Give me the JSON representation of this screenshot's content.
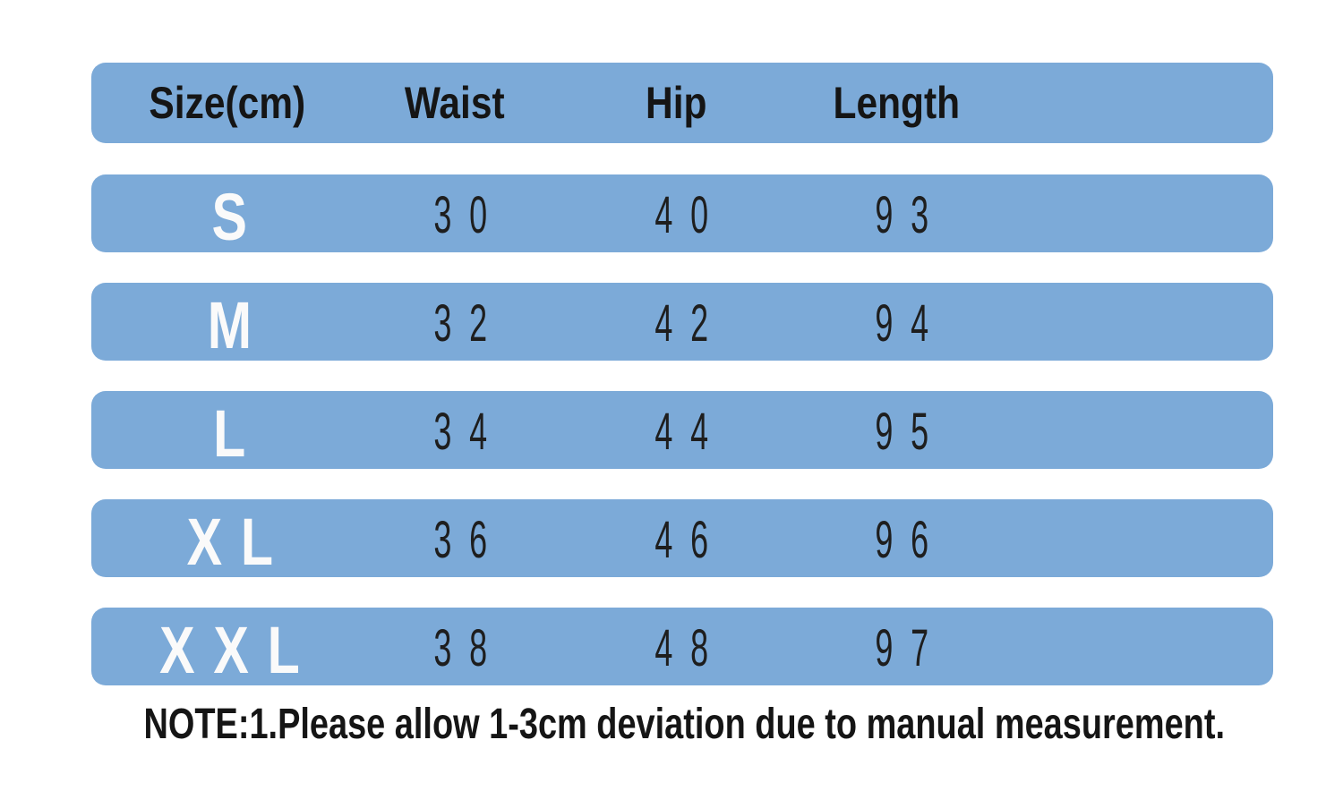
{
  "table": {
    "header": {
      "size": "Size(cm)",
      "waist": "Waist",
      "hip": "Hip",
      "length": "Length"
    },
    "rows": [
      {
        "size": "S",
        "waist": "30",
        "hip": "40",
        "length": "93"
      },
      {
        "size": "M",
        "waist": "32",
        "hip": "42",
        "length": "94"
      },
      {
        "size": "L",
        "waist": "34",
        "hip": "44",
        "length": "95"
      },
      {
        "size": "XL",
        "waist": "36",
        "hip": "46",
        "length": "96"
      },
      {
        "size": "XXL",
        "waist": "38",
        "hip": "48",
        "length": "97"
      }
    ]
  },
  "note": "NOTE:1.Please allow 1-3cm deviation due to manual measurement.",
  "chart_data": {
    "type": "table",
    "columns": [
      "Size(cm)",
      "Waist",
      "Hip",
      "Length"
    ],
    "rows": [
      [
        "S",
        30,
        40,
        93
      ],
      [
        "M",
        32,
        42,
        94
      ],
      [
        "L",
        34,
        44,
        95
      ],
      [
        "XL",
        36,
        46,
        96
      ],
      [
        "XXL",
        38,
        48,
        97
      ]
    ],
    "units": "cm",
    "note": "NOTE:1.Please allow 1-3cm deviation due to manual measurement."
  },
  "colors": {
    "bar_blue": "#7caad8",
    "header_text": "#151515",
    "size_text": "#fafafa",
    "value_text": "#1e1e1e",
    "note_text": "#151515",
    "background": "#ffffff"
  }
}
